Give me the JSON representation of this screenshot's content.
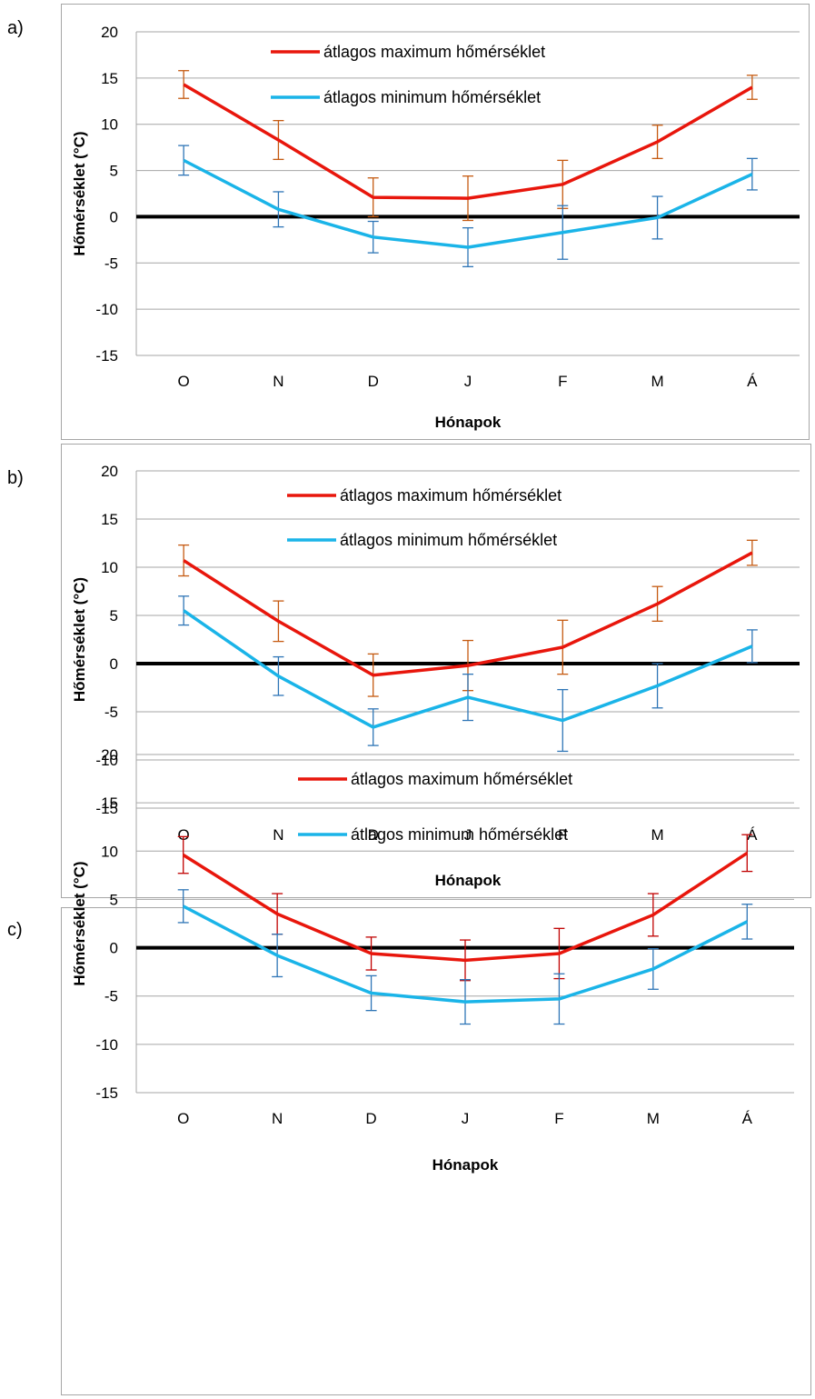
{
  "chart_data": [
    {
      "panel": "a)",
      "type": "line",
      "categories": [
        "O",
        "N",
        "D",
        "J",
        "F",
        "M",
        "Á"
      ],
      "xlabel": "Hónapok",
      "ylabel": "Hőmérséklet (°C)",
      "ylim": [
        -15,
        20
      ],
      "yticks": [
        20,
        15,
        10,
        5,
        0,
        -5,
        -10,
        -15
      ],
      "grid": true,
      "legend_position": "top-center",
      "series": [
        {
          "name": "átlagos maximum hőmérséklet",
          "color": "#e8160c",
          "errcolor": "#c55a11",
          "values": [
            14.3,
            8.3,
            2.1,
            2.0,
            3.5,
            8.1,
            14.0
          ],
          "errors": [
            1.5,
            2.1,
            2.1,
            2.4,
            2.6,
            1.8,
            1.3
          ]
        },
        {
          "name": "átlagos minimum hőmérséklet",
          "color": "#1ab4e8",
          "errcolor": "#2e75b6",
          "values": [
            6.1,
            0.8,
            -2.2,
            -3.3,
            -1.7,
            -0.1,
            4.6
          ],
          "errors": [
            1.6,
            1.9,
            1.7,
            2.1,
            2.9,
            2.3,
            1.7
          ]
        }
      ]
    },
    {
      "panel": "b)",
      "type": "line",
      "categories": [
        "O",
        "N",
        "D",
        "J",
        "F",
        "M",
        "Á"
      ],
      "xlabel": "Hónapok",
      "ylabel": "Hőmérséklet (°C)",
      "ylim": [
        -15,
        20
      ],
      "yticks": [
        20,
        15,
        10,
        5,
        0,
        -5,
        -10,
        -15
      ],
      "grid": true,
      "legend_position": "top-center",
      "series": [
        {
          "name": "átlagos maximum hőmérséklet",
          "color": "#e8160c",
          "errcolor": "#c55a11",
          "values": [
            10.7,
            4.4,
            -1.2,
            -0.2,
            1.7,
            6.2,
            11.5
          ],
          "errors": [
            1.6,
            2.1,
            2.2,
            2.6,
            2.8,
            1.8,
            1.3
          ]
        },
        {
          "name": "átlagos minimum hőmérséklet",
          "color": "#1ab4e8",
          "errcolor": "#2e75b6",
          "values": [
            5.5,
            -1.3,
            -6.6,
            -3.5,
            -5.9,
            -2.3,
            1.8
          ],
          "errors": [
            1.5,
            2.0,
            1.9,
            2.4,
            3.2,
            2.3,
            1.7
          ]
        }
      ]
    },
    {
      "panel": "c)",
      "type": "line",
      "categories": [
        "O",
        "N",
        "D",
        "J",
        "F",
        "M",
        "Á"
      ],
      "xlabel": "Hónapok",
      "ylabel": "Hőmérséklet (°C)",
      "ylim": [
        -15,
        20
      ],
      "yticks": [
        20,
        15,
        10,
        5,
        0,
        -5,
        -10,
        -15
      ],
      "grid": true,
      "legend_position": "top-center",
      "series": [
        {
          "name": "átlagos maximum hőmérséklet",
          "color": "#e8160c",
          "errcolor": "#c00000",
          "values": [
            9.6,
            3.5,
            -0.6,
            -1.3,
            -0.6,
            3.4,
            9.8
          ],
          "errors": [
            1.9,
            2.1,
            1.7,
            2.1,
            2.6,
            2.2,
            1.9
          ]
        },
        {
          "name": "átlagos minimum hőmérséklet",
          "color": "#1ab4e8",
          "errcolor": "#2e75b6",
          "values": [
            4.3,
            -0.8,
            -4.7,
            -5.6,
            -5.3,
            -2.2,
            2.7
          ],
          "errors": [
            1.7,
            2.2,
            1.8,
            2.3,
            2.6,
            2.1,
            1.8
          ]
        }
      ]
    }
  ]
}
